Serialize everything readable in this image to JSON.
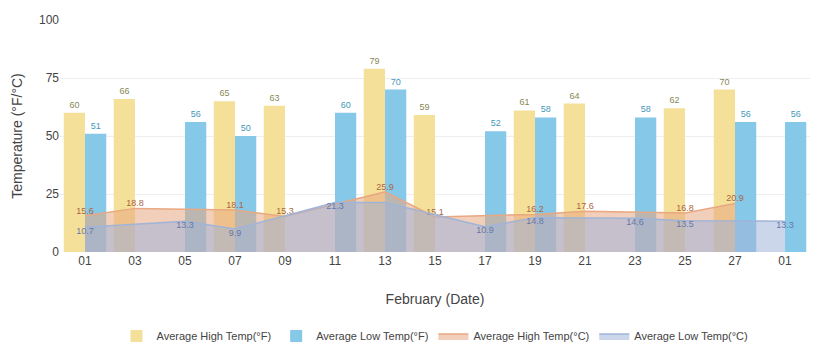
{
  "chart_data": {
    "type": "bar",
    "xlabel": "February (Date)",
    "ylabel": "Temperature (°F/°C)",
    "categories": [
      "01",
      "03",
      "05",
      "07",
      "09",
      "11",
      "13",
      "15",
      "17",
      "19",
      "21",
      "23",
      "25",
      "27",
      "01"
    ],
    "series": [
      {
        "name": "Average High Temp(°F)",
        "type": "bar",
        "color": "#F5E09A",
        "values": [
          60,
          66,
          null,
          65,
          63,
          null,
          79,
          59,
          null,
          61,
          64,
          null,
          62,
          70,
          null
        ]
      },
      {
        "name": "Average Low Temp(°F)",
        "type": "bar",
        "color": "#85C8E8",
        "values": [
          51,
          null,
          56,
          50,
          null,
          60,
          70,
          null,
          52,
          58,
          null,
          58,
          null,
          56,
          56
        ]
      },
      {
        "name": "Average High Temp(°C)",
        "type": "area",
        "color": "#E8A882",
        "values": [
          15.6,
          18.8,
          null,
          18.1,
          15.3,
          null,
          25.9,
          15.1,
          null,
          16.2,
          17.6,
          null,
          16.8,
          20.9,
          null
        ]
      },
      {
        "name": "Average Low Temp(°C)",
        "type": "area",
        "color": "#A0B4D8",
        "values": [
          10.7,
          null,
          13.3,
          9.9,
          null,
          21.3,
          21.3,
          null,
          10.9,
          14.8,
          null,
          14.6,
          13.5,
          null,
          13.3
        ],
        "value_labels": [
          "10.7",
          null,
          "13.3",
          "9.9",
          null,
          "21.3",
          null,
          null,
          "10.9",
          "14.8",
          null,
          "14.6",
          "13.5",
          null,
          "13.3"
        ]
      }
    ],
    "ylim": [
      0,
      100
    ],
    "yticks": [
      0,
      25,
      50,
      75,
      100
    ],
    "grid": true,
    "data_labels": true,
    "legend": "bottom"
  }
}
